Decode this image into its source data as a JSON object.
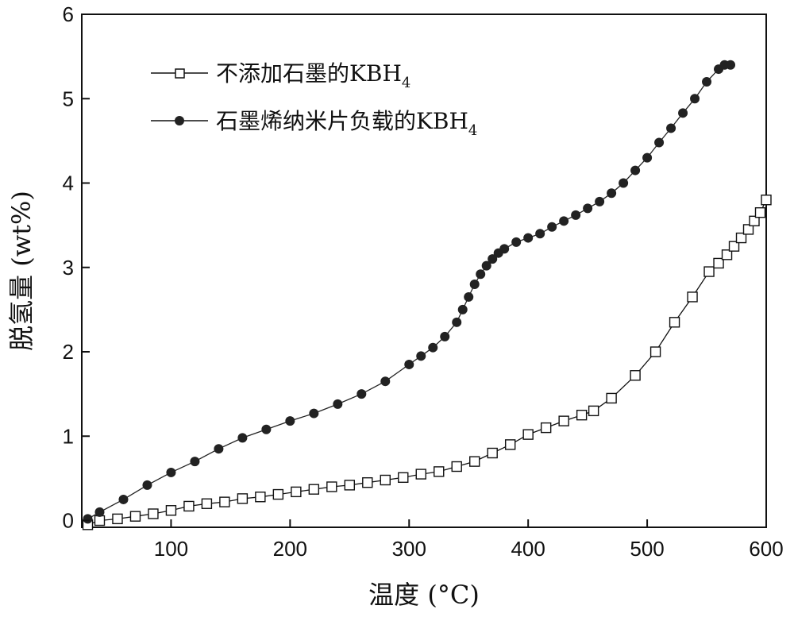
{
  "chart_data": {
    "type": "scatter",
    "xlabel": "温度 (°C)",
    "ylabel": "脱氢量 (wt%)",
    "xlim": [
      25,
      600
    ],
    "ylim": [
      -0.08,
      6
    ],
    "xticks": [
      100,
      200,
      300,
      400,
      500,
      600
    ],
    "yticks": [
      0,
      1,
      2,
      3,
      4,
      5,
      6
    ],
    "grid": false,
    "legend_position": "top-left",
    "series": [
      {
        "name": "不添加石墨的KBH",
        "name_subscript": "4",
        "marker": "open-square",
        "color": "#111111",
        "x": [
          30,
          40,
          55,
          70,
          85,
          100,
          115,
          130,
          145,
          160,
          175,
          190,
          205,
          220,
          235,
          250,
          265,
          280,
          295,
          310,
          325,
          340,
          355,
          370,
          385,
          400,
          415,
          430,
          445,
          455,
          470,
          490,
          507,
          523,
          538,
          552,
          560,
          567,
          573,
          579,
          585,
          590,
          595,
          600
        ],
        "y": [
          -0.05,
          0.0,
          0.02,
          0.05,
          0.08,
          0.12,
          0.17,
          0.2,
          0.22,
          0.26,
          0.28,
          0.31,
          0.34,
          0.37,
          0.4,
          0.42,
          0.45,
          0.48,
          0.51,
          0.55,
          0.58,
          0.64,
          0.7,
          0.8,
          0.9,
          1.02,
          1.1,
          1.18,
          1.25,
          1.3,
          1.45,
          1.72,
          2.0,
          2.35,
          2.65,
          2.95,
          3.05,
          3.15,
          3.25,
          3.35,
          3.45,
          3.55,
          3.65,
          3.8
        ]
      },
      {
        "name": "石墨烯纳米片负载的KBH",
        "name_subscript": "4",
        "marker": "filled-circle",
        "color": "#222222",
        "x": [
          30,
          40,
          60,
          80,
          100,
          120,
          140,
          160,
          180,
          200,
          220,
          240,
          260,
          280,
          300,
          310,
          320,
          330,
          340,
          345,
          350,
          355,
          360,
          365,
          370,
          375,
          380,
          390,
          400,
          410,
          420,
          430,
          440,
          450,
          460,
          470,
          480,
          490,
          500,
          510,
          520,
          530,
          540,
          550,
          560,
          565,
          570
        ],
        "y": [
          0.02,
          0.1,
          0.25,
          0.42,
          0.57,
          0.7,
          0.85,
          0.98,
          1.08,
          1.18,
          1.27,
          1.38,
          1.5,
          1.65,
          1.85,
          1.95,
          2.05,
          2.18,
          2.35,
          2.5,
          2.65,
          2.8,
          2.92,
          3.02,
          3.1,
          3.17,
          3.22,
          3.3,
          3.35,
          3.4,
          3.48,
          3.55,
          3.62,
          3.7,
          3.78,
          3.88,
          4.0,
          4.15,
          4.3,
          4.48,
          4.65,
          4.83,
          5.0,
          5.2,
          5.35,
          5.4,
          5.4
        ]
      }
    ]
  }
}
